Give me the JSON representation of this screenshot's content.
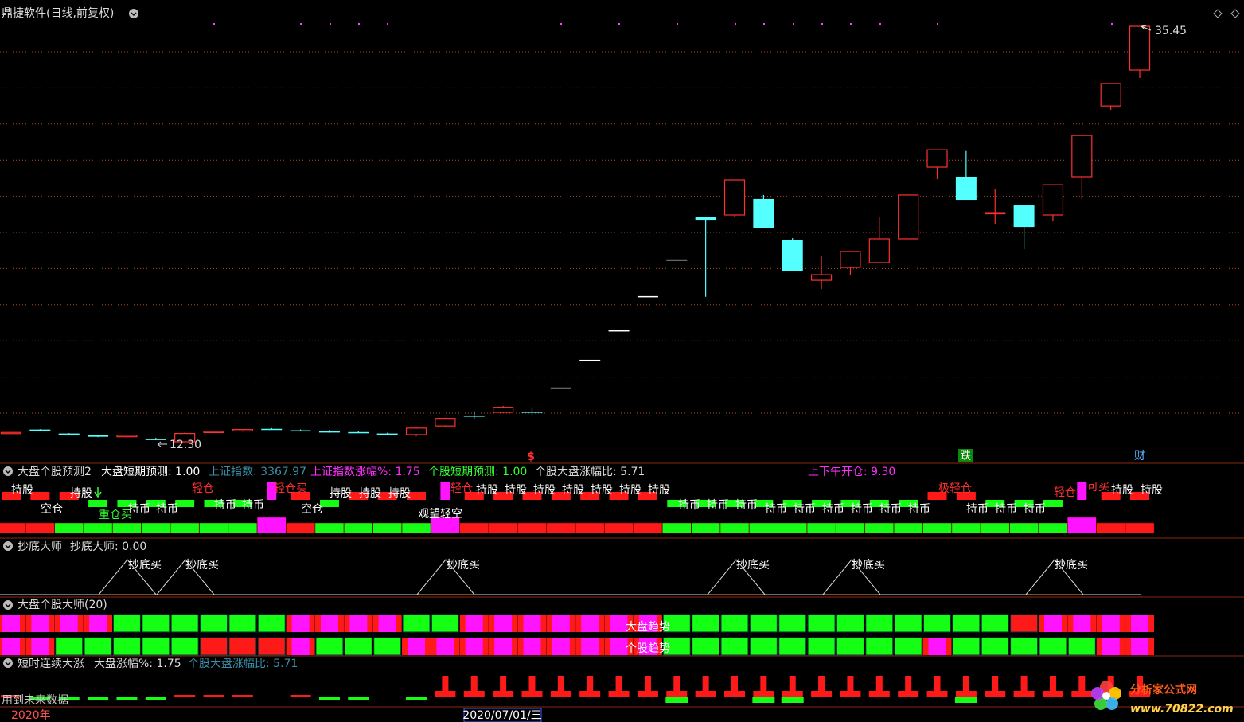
{
  "window": {
    "title": "鼎捷软件(日线,前复权)"
  },
  "chart_data": {
    "type": "candlestick",
    "ylim": [
      11.19,
      36.56
    ],
    "grid": true,
    "open": [
      12.8,
      12.98,
      12.76,
      12.66,
      12.58,
      12.46,
      12.3,
      12.84,
      12.9,
      13.02,
      12.94,
      12.88,
      12.84,
      12.76,
      12.7,
      13.18,
      13.76,
      13.94,
      13.98,
      15.32,
      16.87,
      18.51,
      20.42,
      22.46,
      24.85,
      24.94,
      25.83,
      23.52,
      21.3,
      22.01,
      22.28,
      23.61,
      27.6,
      27.07,
      25.03,
      25.47,
      24.94,
      27.07,
      31.01,
      33.01
    ],
    "high": [
      12.84,
      13.0,
      12.78,
      12.68,
      12.72,
      12.52,
      12.82,
      12.9,
      13.0,
      13.06,
      12.98,
      12.96,
      12.88,
      12.8,
      13.1,
      13.64,
      14.0,
      14.3,
      14.2,
      15.32,
      16.87,
      18.51,
      20.42,
      22.46,
      24.85,
      26.89,
      26.05,
      23.65,
      22.63,
      22.9,
      24.85,
      26.05,
      28.57,
      28.5,
      26.36,
      25.47,
      26.62,
      29.37,
      32.26,
      35.45
    ],
    "low": [
      12.78,
      12.9,
      12.72,
      12.56,
      12.5,
      12.4,
      12.3,
      12.8,
      12.86,
      12.96,
      12.88,
      12.8,
      12.78,
      12.7,
      12.6,
      13.1,
      13.6,
      13.9,
      13.8,
      15.32,
      16.87,
      18.51,
      20.42,
      22.46,
      20.38,
      24.85,
      24.23,
      21.79,
      20.81,
      21.61,
      22.28,
      23.61,
      26.93,
      25.78,
      24.41,
      23.03,
      24.58,
      25.83,
      30.79,
      32.57
    ],
    "close": [
      12.82,
      12.92,
      12.74,
      12.58,
      12.66,
      12.44,
      12.76,
      12.88,
      12.98,
      12.98,
      12.9,
      12.84,
      12.8,
      12.72,
      13.06,
      13.6,
      13.76,
      14.22,
      13.98,
      15.32,
      16.87,
      18.51,
      20.42,
      22.46,
      24.67,
      26.89,
      24.23,
      21.79,
      21.61,
      22.9,
      23.61,
      26.05,
      28.57,
      25.78,
      25.07,
      24.27,
      26.62,
      29.37,
      32.26,
      35.45
    ],
    "high_label": "35.45",
    "low_label": "12.30",
    "markers": [
      "$",
      "跌",
      "财"
    ]
  },
  "panels": [
    {
      "title": "大盘个股预测2",
      "fields": [
        "大盘短期预测: 1.00",
        "上证指数: 3367.97",
        "上证指数涨幅%: 1.75",
        "个股短期预测: 1.00",
        "个股大盘涨幅比: 5.71",
        "上下午开仓: 9.30"
      ],
      "labels": [
        "持股",
        "持股",
        "空仓",
        "重仓买",
        "轻仓",
        "持币",
        "持币",
        "持币",
        "持币",
        "轻仓买",
        "空仓",
        "持股",
        "持股",
        "持股",
        "观望轻空",
        "轻仓",
        "持股",
        "持股",
        "持股",
        "持股",
        "持股",
        "持股",
        "持股",
        "持币",
        "持币",
        "持币",
        "持币",
        "持币",
        "持币",
        "持币",
        "持币",
        "持币",
        "极轻仓",
        "持币",
        "持币",
        "持币",
        "轻仓",
        "可买",
        "持股",
        "持股"
      ]
    },
    {
      "title": "抄底大师",
      "fields": [
        "抄底大师: 0.00"
      ],
      "labels": [
        "抄底买",
        "抄底买",
        "抄底买",
        "抄底买",
        "抄底买",
        "抄底买"
      ]
    },
    {
      "title": "大盘个股大师(20)",
      "fields": [],
      "labels": [
        "大盘趋势",
        "个股趋势"
      ]
    },
    {
      "title": "短时连续大涨",
      "fields": [
        "大盘涨幅%: 1.75",
        "个股大盘涨幅比: 5.71"
      ],
      "labels": [
        "用到未来数据"
      ]
    }
  ],
  "footer": {
    "year": "2020年",
    "cursor_date": "2020/07/01/三"
  },
  "watermark": {
    "name": "分析家公式网",
    "url": "www.70822.com"
  }
}
